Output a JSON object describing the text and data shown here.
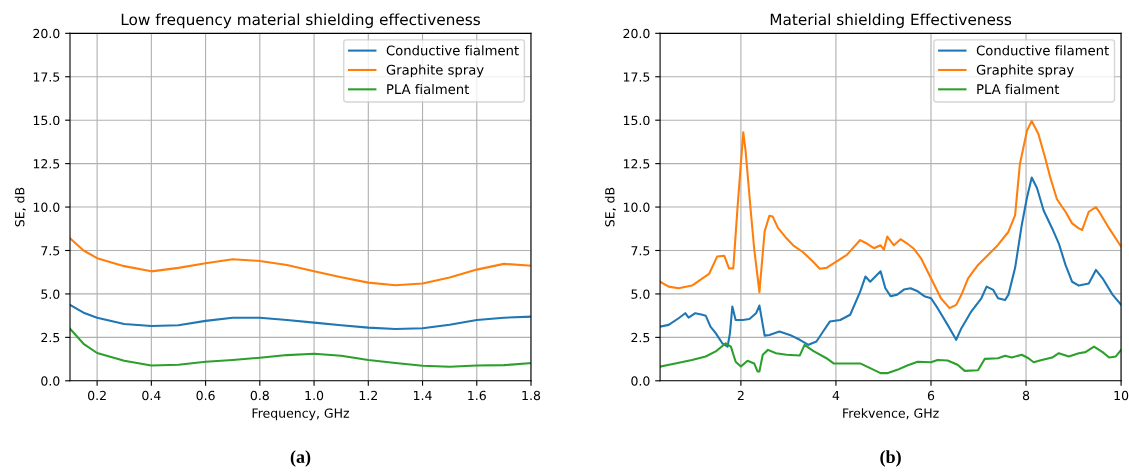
{
  "chart_data": [
    {
      "type": "line",
      "title": "Low frequency material shielding effectiveness",
      "xlabel": "Frequency, GHz",
      "ylabel": "SE, dB",
      "xlim": [
        0.1,
        1.8
      ],
      "xticks": [
        {
          "value": 0.2,
          "label": "0.2"
        },
        {
          "value": 0.4,
          "label": "0.4"
        },
        {
          "value": 0.6,
          "label": "0.6"
        },
        {
          "value": 0.8,
          "label": "0.8"
        },
        {
          "value": 1.0,
          "label": "1.0"
        },
        {
          "value": 1.2,
          "label": "1.2"
        },
        {
          "value": 1.4,
          "label": "1.4"
        },
        {
          "value": 1.6,
          "label": "1.6"
        },
        {
          "value": 1.8,
          "label": "1.8"
        }
      ],
      "ylim": [
        0,
        20
      ],
      "yticks": [
        {
          "value": 0,
          "label": "0.0"
        },
        {
          "value": 2.5,
          "label": "2.5"
        },
        {
          "value": 5,
          "label": "5.0"
        },
        {
          "value": 7.5,
          "label": "7.5"
        },
        {
          "value": 10,
          "label": "10.0"
        },
        {
          "value": 12.5,
          "label": "12.5"
        },
        {
          "value": 15,
          "label": "15.0"
        },
        {
          "value": 17.5,
          "label": "17.5"
        },
        {
          "value": 20,
          "label": "20.0"
        }
      ],
      "grid": true,
      "legend": "top right",
      "annotations": [
        "(a)"
      ],
      "x": [
        0.1,
        0.15,
        0.2,
        0.3,
        0.4,
        0.5,
        0.6,
        0.7,
        0.8,
        0.9,
        1.0,
        1.1,
        1.2,
        1.3,
        1.4,
        1.5,
        1.6,
        1.7,
        1.8
      ],
      "series": [
        {
          "name": "Conductive fialment",
          "color": "#1f77b4",
          "values": [
            4.37,
            3.92,
            3.63,
            3.27,
            3.15,
            3.2,
            3.45,
            3.63,
            3.63,
            3.5,
            3.35,
            3.2,
            3.06,
            2.98,
            3.02,
            3.23,
            3.5,
            3.63,
            3.69
          ]
        },
        {
          "name": "Graphite spray",
          "color": "#ff7f0e",
          "values": [
            8.2,
            7.5,
            7.06,
            6.6,
            6.3,
            6.5,
            6.77,
            7.0,
            6.9,
            6.67,
            6.3,
            5.96,
            5.65,
            5.5,
            5.6,
            5.95,
            6.4,
            6.73,
            6.63
          ]
        },
        {
          "name": "PLA fialment",
          "color": "#2ca02c",
          "values": [
            3.0,
            2.13,
            1.6,
            1.15,
            0.88,
            0.92,
            1.1,
            1.2,
            1.33,
            1.48,
            1.56,
            1.44,
            1.2,
            1.02,
            0.87,
            0.81,
            0.88,
            0.9,
            1.02
          ]
        }
      ]
    },
    {
      "type": "line",
      "title": "Material shielding Effectiveness",
      "xlabel": "Frekvence, GHz",
      "ylabel": "SE, dB",
      "xlim": [
        0.3,
        10
      ],
      "xticks": [
        2,
        4,
        6,
        8,
        10
      ],
      "ylim": [
        0,
        20
      ],
      "yticks": [
        {
          "value": 0,
          "label": "0.0"
        },
        {
          "value": 2.5,
          "label": "2.5"
        },
        {
          "value": 5,
          "label": "5.0"
        },
        {
          "value": 7.5,
          "label": "7.5"
        },
        {
          "value": 10,
          "label": "10.0"
        },
        {
          "value": 12.5,
          "label": "12.5"
        },
        {
          "value": 15,
          "label": "15.0"
        },
        {
          "value": 17.5,
          "label": "17.5"
        },
        {
          "value": 20,
          "label": "20.0"
        }
      ],
      "grid": true,
      "legend": "top right",
      "annotations": [
        "(b)"
      ],
      "series": [
        {
          "name": "Conductive filament",
          "color": "#1f77b4",
          "x": [
            0.3,
            0.48,
            0.69,
            0.83,
            0.9,
            1.04,
            1.19,
            1.26,
            1.36,
            1.47,
            1.61,
            1.72,
            1.77,
            1.82,
            1.89,
            2.04,
            2.18,
            2.32,
            2.39,
            2.5,
            2.6,
            2.81,
            3.03,
            3.24,
            3.42,
            3.59,
            3.73,
            3.87,
            4.09,
            4.3,
            4.51,
            4.62,
            4.72,
            4.83,
            4.94,
            5.04,
            5.15,
            5.29,
            5.43,
            5.57,
            5.72,
            5.86,
            6.0,
            6.14,
            6.35,
            6.53,
            6.64,
            6.85,
            7.06,
            7.17,
            7.31,
            7.41,
            7.56,
            7.63,
            7.77,
            7.91,
            8.02,
            8.12,
            8.23,
            8.37,
            8.55,
            8.69,
            8.83,
            8.97,
            9.11,
            9.32,
            9.47,
            9.61,
            9.82,
            10.0
          ],
          "values": [
            3.12,
            3.22,
            3.6,
            3.89,
            3.64,
            3.89,
            3.8,
            3.75,
            3.12,
            2.74,
            2.16,
            1.97,
            2.74,
            4.27,
            3.5,
            3.5,
            3.56,
            3.89,
            4.33,
            2.6,
            2.64,
            2.84,
            2.64,
            2.36,
            2.07,
            2.26,
            2.84,
            3.41,
            3.5,
            3.8,
            5.13,
            6.0,
            5.7,
            6.0,
            6.3,
            5.33,
            4.87,
            4.96,
            5.25,
            5.33,
            5.15,
            4.87,
            4.75,
            4.18,
            3.22,
            2.36,
            3.03,
            4.0,
            4.75,
            5.42,
            5.23,
            4.75,
            4.65,
            4.96,
            6.5,
            8.97,
            10.55,
            11.7,
            11.1,
            9.8,
            8.77,
            7.9,
            6.67,
            5.7,
            5.48,
            5.6,
            6.38,
            5.9,
            4.96,
            4.37
          ]
        },
        {
          "name": "Graphite spray",
          "color": "#ff7f0e",
          "x": [
            0.3,
            0.48,
            0.69,
            0.97,
            1.33,
            1.5,
            1.65,
            1.75,
            1.84,
            1.93,
            2.05,
            2.1,
            2.21,
            2.28,
            2.39,
            2.5,
            2.6,
            2.67,
            2.78,
            2.96,
            3.1,
            3.31,
            3.52,
            3.66,
            3.8,
            4.0,
            4.23,
            4.51,
            4.65,
            4.8,
            4.94,
            5.01,
            5.08,
            5.22,
            5.36,
            5.5,
            5.64,
            5.79,
            6.0,
            6.21,
            6.39,
            6.53,
            6.64,
            6.78,
            6.99,
            7.2,
            7.41,
            7.63,
            7.77,
            7.87,
            8.02,
            8.12,
            8.26,
            8.4,
            8.51,
            8.65,
            8.83,
            8.97,
            9.11,
            9.18,
            9.32,
            9.47,
            9.54,
            9.75,
            10.0
          ],
          "values": [
            5.7,
            5.42,
            5.33,
            5.48,
            6.15,
            7.15,
            7.2,
            6.47,
            6.47,
            10.0,
            14.3,
            13.2,
            9.7,
            7.6,
            5.1,
            8.6,
            9.5,
            9.45,
            8.8,
            8.2,
            7.8,
            7.4,
            6.85,
            6.45,
            6.5,
            6.85,
            7.25,
            8.1,
            7.9,
            7.63,
            7.8,
            7.55,
            8.3,
            7.8,
            8.15,
            7.9,
            7.6,
            7.05,
            5.9,
            4.75,
            4.18,
            4.37,
            4.95,
            5.9,
            6.67,
            7.24,
            7.82,
            8.58,
            9.54,
            12.46,
            14.4,
            14.95,
            14.2,
            12.85,
            11.7,
            10.45,
            9.73,
            9.06,
            8.77,
            8.68,
            9.73,
            10.0,
            9.73,
            8.77,
            7.72
          ]
        },
        {
          "name": "PLA fialment",
          "color": "#2ca02c",
          "x": [
            0.3,
            0.62,
            0.97,
            1.26,
            1.47,
            1.68,
            1.79,
            1.89,
            2.0,
            2.14,
            2.28,
            2.35,
            2.39,
            2.46,
            2.57,
            2.74,
            2.96,
            3.24,
            3.34,
            3.52,
            3.8,
            3.95,
            4.23,
            4.51,
            4.72,
            4.94,
            5.08,
            5.29,
            5.5,
            5.72,
            6.0,
            6.14,
            6.35,
            6.56,
            6.71,
            6.99,
            7.13,
            7.41,
            7.56,
            7.7,
            7.91,
            8.05,
            8.16,
            8.33,
            8.55,
            8.69,
            8.9,
            9.11,
            9.25,
            9.43,
            9.61,
            9.75,
            9.89,
            10.0
          ],
          "values": [
            0.82,
            1.0,
            1.2,
            1.4,
            1.69,
            2.16,
            1.97,
            1.1,
            0.82,
            1.15,
            1.0,
            0.54,
            0.54,
            1.5,
            1.78,
            1.59,
            1.5,
            1.46,
            2.07,
            1.72,
            1.3,
            1.0,
            1.0,
            1.0,
            0.73,
            0.44,
            0.44,
            0.63,
            0.88,
            1.1,
            1.07,
            1.2,
            1.17,
            0.92,
            0.57,
            0.61,
            1.26,
            1.3,
            1.44,
            1.34,
            1.5,
            1.3,
            1.07,
            1.2,
            1.34,
            1.59,
            1.4,
            1.59,
            1.65,
            1.97,
            1.65,
            1.34,
            1.4,
            1.78
          ]
        }
      ]
    }
  ]
}
